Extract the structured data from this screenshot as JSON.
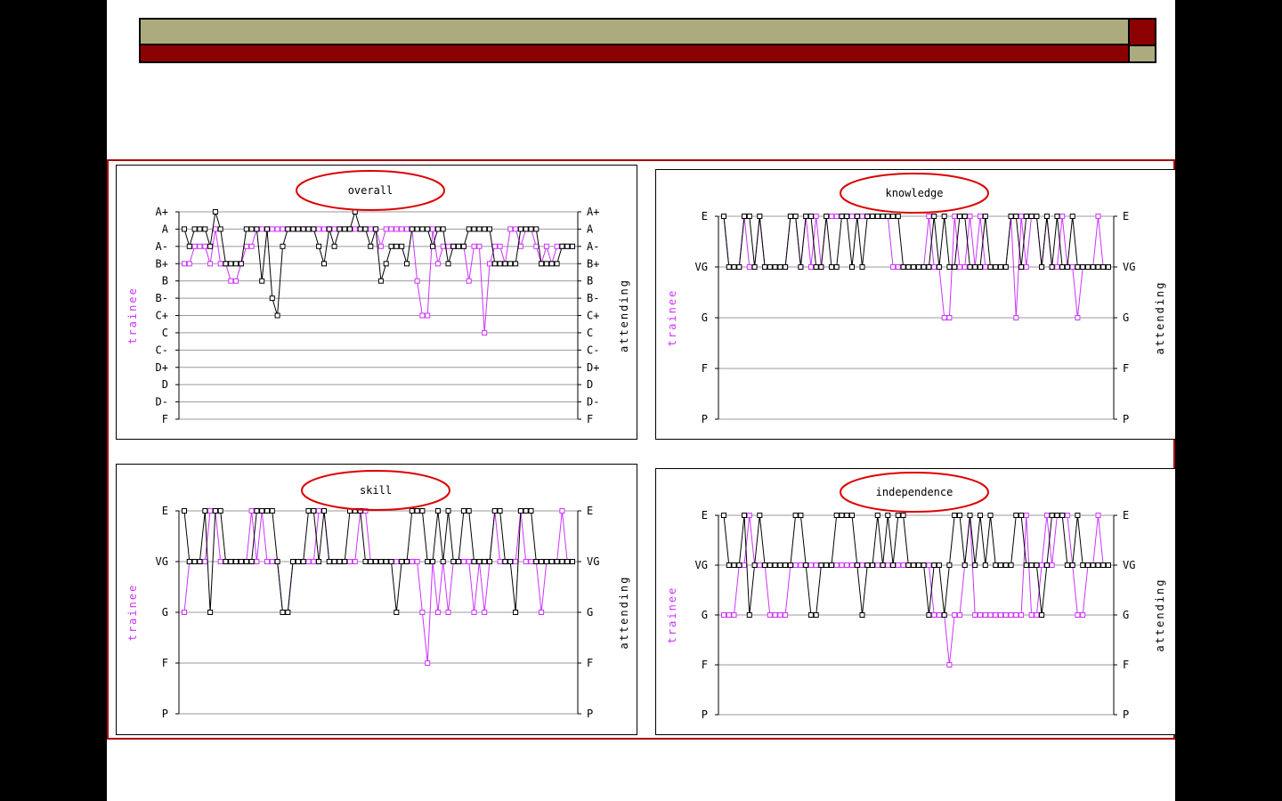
{
  "colors": {
    "trainee": "#cc33ff",
    "attending": "#000000",
    "grid": "#999999",
    "ellipse": "#dd0000",
    "accent_red": "#8b0000",
    "accent_olive": "#acab7d"
  },
  "chart_data": [
    {
      "type": "line",
      "title": "overall",
      "ylabel_left": "trainee",
      "ylabel_right": "attending",
      "y_categories": [
        "A+",
        "A",
        "A-",
        "B+",
        "B",
        "B-",
        "C+",
        "C",
        "C-",
        "D+",
        "D",
        "D-",
        "F"
      ],
      "grid": true,
      "series": [
        {
          "name": "trainee",
          "values": [
            "B+",
            "B+",
            "A-",
            "A-",
            "A-",
            "B+",
            "A",
            "B+",
            "B+",
            "B",
            "B",
            "B+",
            "A-",
            "A-",
            "A",
            "A",
            "A",
            "A",
            "A",
            "A",
            "A",
            "A",
            "A",
            "A",
            "A",
            "A",
            "A",
            "A",
            "A",
            "A",
            "A",
            "A",
            "A",
            "A",
            "A",
            "A",
            "A",
            "A",
            "A-",
            "A",
            "A",
            "A",
            "A",
            "A",
            "A",
            "B",
            "C+",
            "C+",
            "A",
            "B+",
            "A-",
            "A-",
            "A-",
            "A-",
            "A-",
            "B",
            "A-",
            "A-",
            "C",
            "B+",
            "A-",
            "A-",
            "B+",
            "A",
            "A",
            "A-",
            "A",
            "A",
            "A-",
            "B+",
            "A-",
            "B+",
            "A-",
            "A-",
            "A-",
            "A-"
          ]
        },
        {
          "name": "attending",
          "values": [
            "A",
            "A-",
            "A",
            "A",
            "A",
            "A-",
            "A+",
            "A",
            "B+",
            "B+",
            "B+",
            "B+",
            "A",
            "A",
            "A",
            "B",
            "A",
            "B-",
            "C+",
            "A-",
            "A",
            "A",
            "A",
            "A",
            "A",
            "A",
            "A-",
            "B+",
            "A",
            "A-",
            "A",
            "A",
            "A",
            "A+",
            "A",
            "A",
            "A-",
            "A",
            "B",
            "B+",
            "A-",
            "A-",
            "A-",
            "B+",
            "A",
            "A",
            "A",
            "A",
            "A-",
            "A",
            "A",
            "B+",
            "A-",
            "A-",
            "A-",
            "A",
            "A",
            "A",
            "A",
            "A",
            "B+",
            "B+",
            "B+",
            "B+",
            "B+",
            "A",
            "A",
            "A",
            "A",
            "B+",
            "B+",
            "B+",
            "B+",
            "A-",
            "A-",
            "A-"
          ]
        }
      ]
    },
    {
      "type": "line",
      "title": "knowledge",
      "ylabel_left": "trainee",
      "ylabel_right": "attending",
      "y_categories": [
        "E",
        "VG",
        "G",
        "F",
        "P"
      ],
      "grid": true,
      "series": [
        {
          "name": "trainee",
          "values": [
            "E",
            "VG",
            "VG",
            "VG",
            "E",
            "VG",
            "VG",
            "E",
            "VG",
            "VG",
            "VG",
            "VG",
            "VG",
            "E",
            "E",
            "VG",
            "E",
            "VG",
            "E",
            "VG",
            "E",
            "E",
            "E",
            "E",
            "E",
            "E",
            "E",
            "E",
            "E",
            "E",
            "E",
            "E",
            "E",
            "VG",
            "VG",
            "VG",
            "VG",
            "VG",
            "VG",
            "VG",
            "E",
            "VG",
            "VG",
            "G",
            "G",
            "E",
            "VG",
            "VG",
            "E",
            "VG",
            "E",
            "VG",
            "VG",
            "VG",
            "VG",
            "VG",
            "E",
            "G",
            "E",
            "VG",
            "E",
            "E",
            "VG",
            "E",
            "VG",
            "VG",
            "E",
            "VG",
            "VG",
            "G",
            "VG",
            "VG",
            "VG",
            "E",
            "VG",
            "VG"
          ]
        },
        {
          "name": "attending",
          "values": [
            "E",
            "VG",
            "VG",
            "VG",
            "E",
            "E",
            "VG",
            "E",
            "VG",
            "VG",
            "VG",
            "VG",
            "VG",
            "E",
            "E",
            "VG",
            "E",
            "E",
            "VG",
            "VG",
            "E",
            "VG",
            "VG",
            "E",
            "E",
            "VG",
            "E",
            "VG",
            "E",
            "E",
            "E",
            "E",
            "E",
            "E",
            "E",
            "VG",
            "VG",
            "VG",
            "VG",
            "VG",
            "VG",
            "E",
            "VG",
            "E",
            "VG",
            "VG",
            "E",
            "E",
            "VG",
            "VG",
            "VG",
            "E",
            "VG",
            "VG",
            "VG",
            "VG",
            "E",
            "E",
            "VG",
            "E",
            "E",
            "E",
            "VG",
            "E",
            "VG",
            "E",
            "VG",
            "VG",
            "E",
            "VG",
            "VG",
            "VG",
            "VG",
            "VG",
            "VG",
            "VG"
          ]
        }
      ]
    },
    {
      "type": "line",
      "title": "skill",
      "ylabel_left": "trainee",
      "ylabel_right": "attending",
      "y_categories": [
        "E",
        "VG",
        "G",
        "F",
        "P"
      ],
      "grid": true,
      "series": [
        {
          "name": "trainee",
          "values": [
            "G",
            "VG",
            "VG",
            "VG",
            "VG",
            "E",
            "E",
            "VG",
            "VG",
            "VG",
            "VG",
            "VG",
            "VG",
            "E",
            "VG",
            "E",
            "VG",
            "VG",
            "VG",
            "G",
            "G",
            "VG",
            "VG",
            "VG",
            "VG",
            "VG",
            "E",
            "E",
            "VG",
            "VG",
            "VG",
            "VG",
            "VG",
            "VG",
            "E",
            "E",
            "VG",
            "VG",
            "VG",
            "VG",
            "VG",
            "VG",
            "VG",
            "VG",
            "VG",
            "VG",
            "G",
            "F",
            "VG",
            "G",
            "VG",
            "G",
            "VG",
            "VG",
            "VG",
            "VG",
            "G",
            "VG",
            "G",
            "VG",
            "E",
            "VG",
            "VG",
            "VG",
            "VG",
            "E",
            "VG",
            "VG",
            "VG",
            "G",
            "VG",
            "VG",
            "VG",
            "E",
            "VG",
            "VG"
          ]
        },
        {
          "name": "attending",
          "values": [
            "E",
            "VG",
            "VG",
            "VG",
            "E",
            "G",
            "E",
            "E",
            "VG",
            "VG",
            "VG",
            "VG",
            "VG",
            "VG",
            "E",
            "E",
            "E",
            "E",
            "VG",
            "G",
            "G",
            "VG",
            "VG",
            "VG",
            "E",
            "E",
            "VG",
            "E",
            "VG",
            "VG",
            "VG",
            "VG",
            "E",
            "E",
            "E",
            "VG",
            "VG",
            "VG",
            "VG",
            "VG",
            "VG",
            "G",
            "VG",
            "VG",
            "E",
            "E",
            "E",
            "VG",
            "VG",
            "E",
            "VG",
            "E",
            "VG",
            "VG",
            "E",
            "E",
            "VG",
            "VG",
            "VG",
            "VG",
            "E",
            "E",
            "VG",
            "VG",
            "G",
            "E",
            "E",
            "E",
            "VG",
            "VG",
            "VG",
            "VG",
            "VG",
            "VG",
            "VG",
            "VG"
          ]
        }
      ]
    },
    {
      "type": "line",
      "title": "independence",
      "ylabel_left": "trainee",
      "ylabel_right": "attending",
      "y_categories": [
        "E",
        "VG",
        "G",
        "F",
        "P"
      ],
      "grid": true,
      "series": [
        {
          "name": "trainee",
          "values": [
            "G",
            "G",
            "G",
            "VG",
            "VG",
            "E",
            "VG",
            "VG",
            "VG",
            "G",
            "G",
            "G",
            "G",
            "VG",
            "VG",
            "VG",
            "VG",
            "VG",
            "VG",
            "VG",
            "VG",
            "VG",
            "VG",
            "VG",
            "VG",
            "VG",
            "VG",
            "VG",
            "VG",
            "VG",
            "VG",
            "VG",
            "VG",
            "VG",
            "VG",
            "VG",
            "VG",
            "VG",
            "VG",
            "VG",
            "VG",
            "G",
            "G",
            "G",
            "F",
            "G",
            "G",
            "VG",
            "E",
            "G",
            "G",
            "G",
            "G",
            "G",
            "G",
            "G",
            "G",
            "G",
            "G",
            "E",
            "G",
            "G",
            "VG",
            "E",
            "VG",
            "E",
            "E",
            "E",
            "VG",
            "G",
            "G",
            "VG",
            "VG",
            "E",
            "VG",
            "VG"
          ]
        },
        {
          "name": "attending",
          "values": [
            "E",
            "VG",
            "VG",
            "VG",
            "E",
            "G",
            "VG",
            "E",
            "VG",
            "VG",
            "VG",
            "VG",
            "VG",
            "VG",
            "E",
            "E",
            "VG",
            "G",
            "G",
            "VG",
            "VG",
            "VG",
            "E",
            "E",
            "E",
            "E",
            "VG",
            "G",
            "VG",
            "VG",
            "E",
            "VG",
            "E",
            "VG",
            "E",
            "E",
            "VG",
            "VG",
            "VG",
            "VG",
            "G",
            "VG",
            "VG",
            "G",
            "VG",
            "E",
            "E",
            "VG",
            "E",
            "VG",
            "E",
            "VG",
            "E",
            "VG",
            "VG",
            "VG",
            "VG",
            "E",
            "E",
            "VG",
            "VG",
            "VG",
            "G",
            "VG",
            "E",
            "E",
            "E",
            "VG",
            "VG",
            "E",
            "VG",
            "VG",
            "VG",
            "VG",
            "VG",
            "VG"
          ]
        }
      ]
    }
  ]
}
